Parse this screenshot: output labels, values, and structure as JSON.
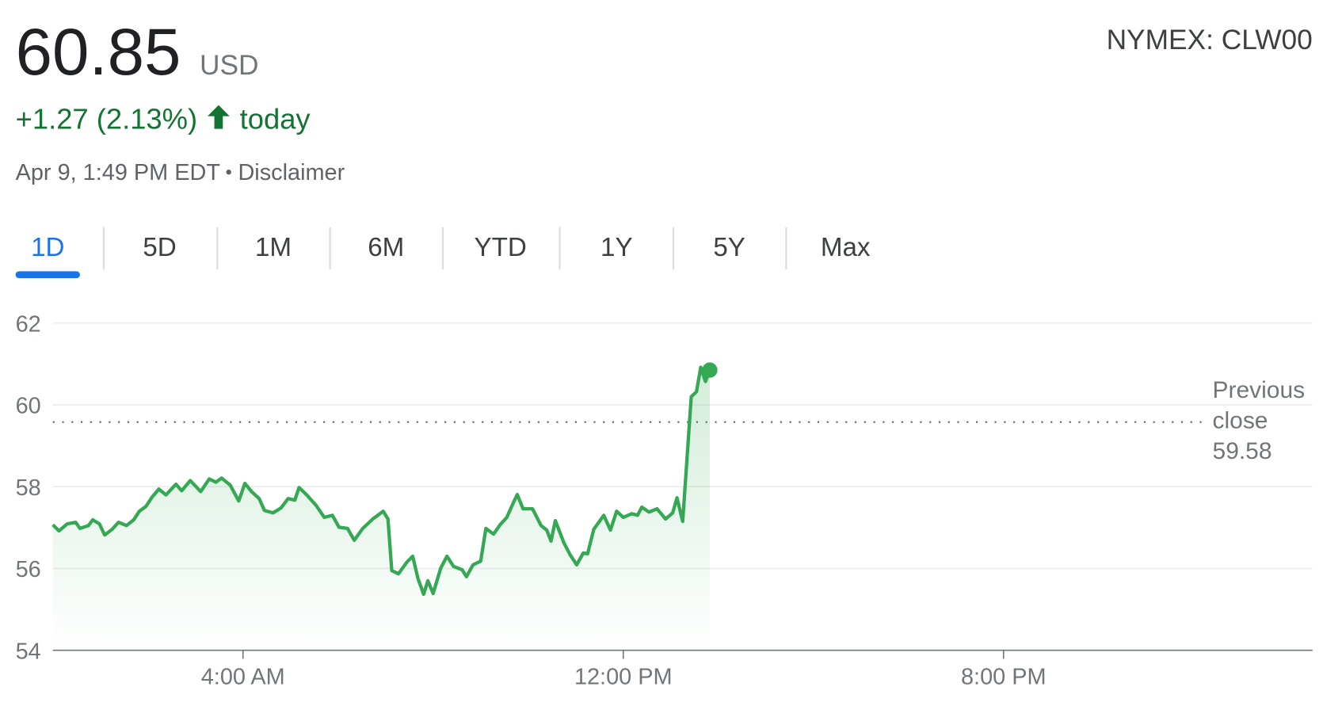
{
  "header": {
    "price": "60.85",
    "currency": "USD",
    "ticker": "NYMEX: CLW00",
    "change": "+1.27 (2.13%)",
    "period": "today",
    "timestamp": "Apr 9, 1:49 PM EDT",
    "disclaimer": "Disclaimer"
  },
  "tabs": {
    "items": [
      "1D",
      "5D",
      "1M",
      "6M",
      "YTD",
      "1Y",
      "5Y",
      "Max"
    ],
    "selected": 0
  },
  "chart_data": {
    "type": "line",
    "color": "#34a853",
    "x": [
      0,
      0.13,
      0.3,
      0.48,
      0.57,
      0.75,
      0.84,
      0.98,
      1.09,
      1.25,
      1.38,
      1.55,
      1.7,
      1.82,
      1.96,
      2.09,
      2.23,
      2.38,
      2.59,
      2.71,
      2.89,
      3.11,
      3.29,
      3.43,
      3.55,
      3.73,
      3.91,
      4.04,
      4.18,
      4.34,
      4.45,
      4.63,
      4.8,
      4.95,
      5.09,
      5.18,
      5.34,
      5.54,
      5.71,
      5.88,
      6.02,
      6.2,
      6.34,
      6.52,
      6.73,
      6.95,
      7.05,
      7.13,
      7.27,
      7.45,
      7.57,
      7.68,
      7.8,
      7.89,
      8.0,
      8.16,
      8.29,
      8.43,
      8.61,
      8.7,
      8.84,
      9.0,
      9.11,
      9.27,
      9.41,
      9.55,
      9.68,
      9.77,
      9.89,
      10.09,
      10.27,
      10.39,
      10.48,
      10.57,
      10.75,
      10.88,
      11.02,
      11.16,
      11.25,
      11.38,
      11.59,
      11.73,
      11.86,
      12.0,
      12.18,
      12.3,
      12.39,
      12.54,
      12.71,
      12.89,
      13.04,
      13.13,
      13.25,
      13.43,
      13.54,
      13.63,
      13.73,
      13.82
    ],
    "values": [
      57.07,
      56.92,
      57.09,
      57.13,
      56.98,
      57.05,
      57.19,
      57.09,
      56.82,
      56.96,
      57.13,
      57.05,
      57.19,
      57.4,
      57.52,
      57.75,
      57.94,
      57.8,
      58.06,
      57.9,
      58.15,
      57.88,
      58.19,
      58.11,
      58.21,
      58.04,
      57.65,
      58.08,
      57.88,
      57.71,
      57.42,
      57.36,
      57.48,
      57.71,
      57.67,
      57.98,
      57.8,
      57.54,
      57.25,
      57.3,
      57.01,
      56.98,
      56.69,
      56.98,
      57.21,
      57.4,
      57.21,
      55.95,
      55.87,
      56.16,
      56.3,
      55.76,
      55.37,
      55.7,
      55.39,
      56.01,
      56.3,
      56.05,
      55.97,
      55.8,
      56.09,
      56.18,
      56.98,
      56.84,
      57.07,
      57.25,
      57.59,
      57.81,
      57.46,
      57.46,
      57.05,
      56.94,
      56.67,
      57.17,
      56.63,
      56.34,
      56.09,
      56.38,
      56.36,
      56.96,
      57.3,
      56.94,
      57.4,
      57.25,
      57.34,
      57.3,
      57.5,
      57.38,
      57.46,
      57.21,
      57.36,
      57.73,
      57.15,
      60.2,
      60.32,
      60.92,
      60.57,
      60.85
    ],
    "xlim": [
      0,
      26.5
    ],
    "xticks": [
      {
        "value": 4,
        "label": "4:00 AM"
      },
      {
        "value": 12,
        "label": "12:00 PM"
      },
      {
        "value": 20,
        "label": "8:00 PM"
      }
    ],
    "ylim": [
      54,
      62
    ],
    "yticks": [
      54,
      56,
      58,
      60,
      62
    ],
    "grid": true,
    "reference_line": {
      "label": "Previous close",
      "value": 59.58
    }
  }
}
